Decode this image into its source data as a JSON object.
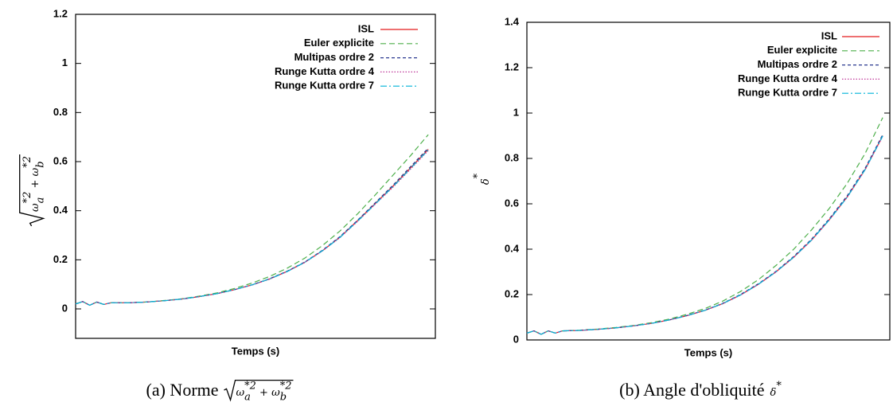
{
  "chart_data": [
    {
      "type": "line",
      "xlabel": "Temps (s)",
      "ylabel": [
        {
          "base": "ω",
          "sup": "*2",
          "sub": "a"
        },
        {
          "base": " + "
        },
        {
          "base": "ω",
          "sup": "*2",
          "sub": "b"
        }
      ],
      "caption": {
        "text": "(a) Norme",
        "math": [
          {
            "base": "ω",
            "sup": "*2",
            "sub": "a"
          },
          {
            "base": " + "
          },
          {
            "base": "ω",
            "sup": "*2",
            "sub": "b"
          }
        ]
      },
      "x": [
        0,
        0.02,
        0.04,
        0.06,
        0.08,
        0.1,
        0.15,
        0.2,
        0.25,
        0.3,
        0.35,
        0.4,
        0.45,
        0.5,
        0.55,
        0.6,
        0.65,
        0.7,
        0.75,
        0.8,
        0.85,
        0.9,
        0.95,
        1.0
      ],
      "xlim": [
        0,
        1.02
      ],
      "ylim": [
        -0.12,
        1.2
      ],
      "yticks": [
        0,
        0.2,
        0.4,
        0.6,
        0.8,
        1,
        1.2
      ],
      "legend": "upper right",
      "series": [
        {
          "name": "ISL",
          "color": "#e41a1c",
          "style": "solid",
          "values": [
            0.02,
            0.03,
            0.015,
            0.028,
            0.018,
            0.025,
            0.025,
            0.028,
            0.033,
            0.04,
            0.05,
            0.062,
            0.078,
            0.098,
            0.122,
            0.153,
            0.19,
            0.237,
            0.293,
            0.36,
            0.43,
            0.5,
            0.575,
            0.65
          ]
        },
        {
          "name": "Euler explicite",
          "color": "#4daf4a",
          "style": "dashed",
          "values": [
            0.02,
            0.03,
            0.015,
            0.028,
            0.018,
            0.025,
            0.025,
            0.028,
            0.034,
            0.041,
            0.052,
            0.065,
            0.083,
            0.105,
            0.132,
            0.166,
            0.207,
            0.258,
            0.318,
            0.388,
            0.465,
            0.545,
            0.625,
            0.71
          ]
        },
        {
          "name": "Multipas ordre 2",
          "color": "#2b3990",
          "style": "shortdash",
          "values": [
            0.02,
            0.03,
            0.015,
            0.028,
            0.018,
            0.025,
            0.025,
            0.028,
            0.033,
            0.04,
            0.05,
            0.062,
            0.078,
            0.098,
            0.123,
            0.154,
            0.191,
            0.239,
            0.295,
            0.362,
            0.433,
            0.504,
            0.58,
            0.655
          ]
        },
        {
          "name": "Runge Kutta ordre 4",
          "color": "#c0399a",
          "style": "dotted",
          "values": [
            0.02,
            0.03,
            0.015,
            0.028,
            0.018,
            0.025,
            0.025,
            0.028,
            0.033,
            0.04,
            0.05,
            0.062,
            0.078,
            0.097,
            0.121,
            0.152,
            0.189,
            0.236,
            0.291,
            0.357,
            0.427,
            0.496,
            0.57,
            0.645
          ]
        },
        {
          "name": "Runge Kutta ordre 7",
          "color": "#00b4d8",
          "style": "dashdot",
          "values": [
            0.02,
            0.03,
            0.015,
            0.028,
            0.018,
            0.025,
            0.025,
            0.028,
            0.033,
            0.04,
            0.05,
            0.062,
            0.078,
            0.098,
            0.122,
            0.152,
            0.19,
            0.237,
            0.292,
            0.358,
            0.428,
            0.498,
            0.573,
            0.648
          ]
        }
      ]
    },
    {
      "type": "line",
      "xlabel": "Temps (s)",
      "ylabel": [
        {
          "base": "δ",
          "sup": "*"
        }
      ],
      "caption": {
        "text": "(b) Angle d'obliquité",
        "math": [
          {
            "base": "δ",
            "sup": "*"
          }
        ]
      },
      "x": [
        0,
        0.02,
        0.04,
        0.06,
        0.08,
        0.1,
        0.15,
        0.2,
        0.25,
        0.3,
        0.35,
        0.4,
        0.45,
        0.5,
        0.55,
        0.6,
        0.65,
        0.7,
        0.75,
        0.8,
        0.85,
        0.9,
        0.95,
        1.0
      ],
      "xlim": [
        0,
        1.02
      ],
      "ylim": [
        0,
        1.4
      ],
      "yticks": [
        0,
        0.2,
        0.4,
        0.6,
        0.8,
        1,
        1.2,
        1.4
      ],
      "legend": "upper right",
      "series": [
        {
          "name": "ISL",
          "color": "#e41a1c",
          "style": "solid",
          "values": [
            0.03,
            0.04,
            0.025,
            0.04,
            0.03,
            0.04,
            0.042,
            0.047,
            0.053,
            0.062,
            0.073,
            0.088,
            0.107,
            0.13,
            0.16,
            0.198,
            0.245,
            0.3,
            0.365,
            0.44,
            0.53,
            0.63,
            0.75,
            0.9
          ]
        },
        {
          "name": "Euler explicite",
          "color": "#4daf4a",
          "style": "dashed",
          "values": [
            0.03,
            0.04,
            0.025,
            0.04,
            0.03,
            0.04,
            0.043,
            0.048,
            0.055,
            0.064,
            0.076,
            0.092,
            0.113,
            0.138,
            0.171,
            0.213,
            0.265,
            0.328,
            0.4,
            0.485,
            0.58,
            0.69,
            0.82,
            0.98
          ]
        },
        {
          "name": "Multipas ordre 2",
          "color": "#2b3990",
          "style": "shortdash",
          "values": [
            0.03,
            0.04,
            0.025,
            0.04,
            0.03,
            0.04,
            0.042,
            0.047,
            0.053,
            0.062,
            0.073,
            0.088,
            0.108,
            0.131,
            0.161,
            0.2,
            0.247,
            0.302,
            0.368,
            0.444,
            0.534,
            0.635,
            0.755,
            0.905
          ]
        },
        {
          "name": "Runge Kutta ordre 4",
          "color": "#c0399a",
          "style": "dotted",
          "values": [
            0.03,
            0.04,
            0.025,
            0.04,
            0.03,
            0.04,
            0.042,
            0.047,
            0.053,
            0.062,
            0.073,
            0.088,
            0.107,
            0.13,
            0.159,
            0.197,
            0.244,
            0.299,
            0.364,
            0.439,
            0.528,
            0.628,
            0.748,
            0.897
          ]
        },
        {
          "name": "Runge Kutta ordre 7",
          "color": "#00b4d8",
          "style": "dashdot",
          "values": [
            0.03,
            0.04,
            0.025,
            0.04,
            0.03,
            0.04,
            0.042,
            0.047,
            0.053,
            0.062,
            0.073,
            0.088,
            0.107,
            0.13,
            0.16,
            0.198,
            0.245,
            0.3,
            0.365,
            0.44,
            0.529,
            0.629,
            0.749,
            0.899
          ]
        }
      ]
    }
  ]
}
